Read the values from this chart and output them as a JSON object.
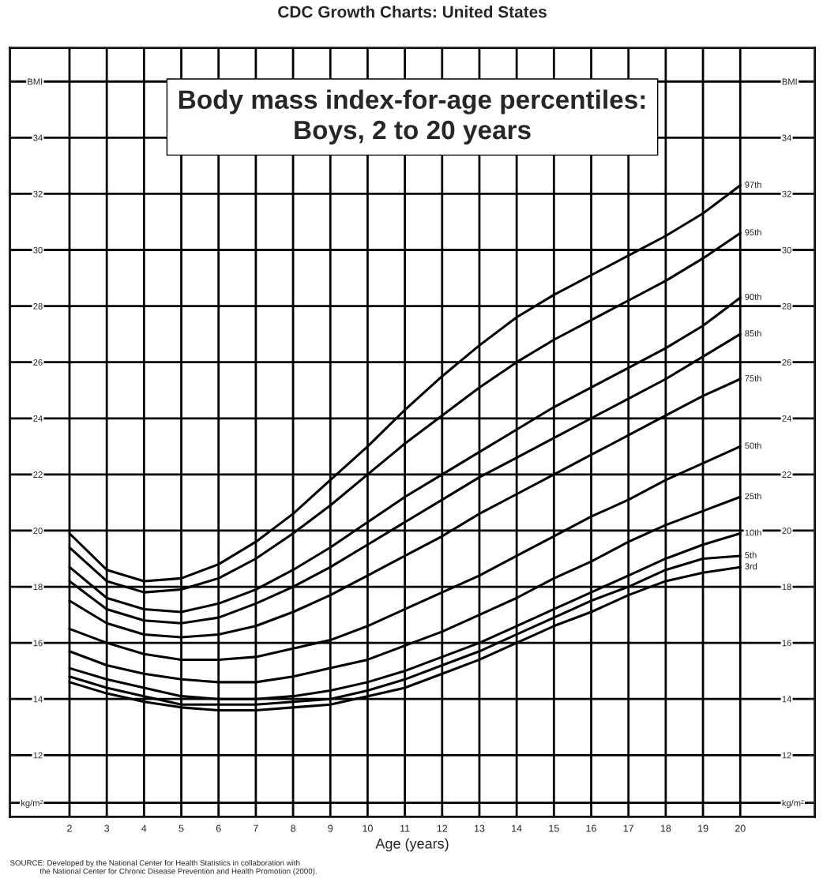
{
  "chart_data": {
    "type": "line",
    "title": "CDC Growth Charts: United States",
    "subtitle": "Body mass index-for-age percentiles:\nBoys, 2 to 20 years",
    "xlabel": "Age (years)",
    "annotations": [
      "SOURCE: Developed by the National Center for Health Statistics in collaboration with\n              the National Center for Chronic Disease Prevention and Health Promotion (2000)."
    ],
    "x": [
      2,
      3,
      4,
      5,
      6,
      7,
      8,
      9,
      10,
      11,
      12,
      13,
      14,
      15,
      16,
      17,
      18,
      19,
      20
    ],
    "series": [
      {
        "name": "97th",
        "color": "#000000",
        "values": [
          19.9,
          18.6,
          18.2,
          18.3,
          18.8,
          19.6,
          20.6,
          21.8,
          23.0,
          24.3,
          25.5,
          26.6,
          27.6,
          28.4,
          29.1,
          29.8,
          30.5,
          31.3,
          32.3
        ]
      },
      {
        "name": "95th",
        "color": "#000000",
        "values": [
          19.4,
          18.2,
          17.8,
          17.9,
          18.3,
          19.0,
          19.9,
          20.9,
          22.0,
          23.1,
          24.1,
          25.1,
          26.0,
          26.8,
          27.5,
          28.2,
          28.9,
          29.7,
          30.6
        ]
      },
      {
        "name": "90th",
        "color": "#000000",
        "values": [
          18.7,
          17.6,
          17.2,
          17.1,
          17.4,
          17.9,
          18.6,
          19.4,
          20.3,
          21.2,
          22.0,
          22.8,
          23.6,
          24.4,
          25.1,
          25.8,
          26.5,
          27.3,
          28.3
        ]
      },
      {
        "name": "85th",
        "color": "#000000",
        "values": [
          18.2,
          17.2,
          16.8,
          16.7,
          16.9,
          17.4,
          18.0,
          18.7,
          19.5,
          20.3,
          21.1,
          21.9,
          22.6,
          23.3,
          24.0,
          24.7,
          25.4,
          26.2,
          27.0
        ]
      },
      {
        "name": "75th",
        "color": "#000000",
        "values": [
          17.5,
          16.7,
          16.3,
          16.2,
          16.3,
          16.6,
          17.1,
          17.7,
          18.4,
          19.1,
          19.8,
          20.6,
          21.3,
          22.0,
          22.7,
          23.4,
          24.1,
          24.8,
          25.4
        ]
      },
      {
        "name": "50th",
        "color": "#000000",
        "values": [
          16.5,
          16.0,
          15.6,
          15.4,
          15.4,
          15.5,
          15.8,
          16.1,
          16.6,
          17.2,
          17.8,
          18.4,
          19.1,
          19.8,
          20.5,
          21.1,
          21.8,
          22.4,
          23.0
        ]
      },
      {
        "name": "25th",
        "color": "#000000",
        "values": [
          15.7,
          15.2,
          14.9,
          14.7,
          14.6,
          14.6,
          14.8,
          15.1,
          15.4,
          15.9,
          16.4,
          17.0,
          17.6,
          18.3,
          18.9,
          19.6,
          20.2,
          20.7,
          21.2
        ]
      },
      {
        "name": "10th",
        "color": "#000000",
        "values": [
          15.1,
          14.7,
          14.4,
          14.1,
          14.0,
          14.0,
          14.1,
          14.3,
          14.6,
          15.0,
          15.5,
          16.0,
          16.6,
          17.2,
          17.8,
          18.4,
          19.0,
          19.5,
          19.9
        ]
      },
      {
        "name": "5th",
        "color": "#000000",
        "values": [
          14.8,
          14.4,
          14.1,
          13.8,
          13.8,
          13.8,
          13.9,
          14.0,
          14.3,
          14.7,
          15.2,
          15.7,
          16.3,
          16.9,
          17.5,
          18.0,
          18.6,
          19.0,
          19.1
        ]
      },
      {
        "name": "3rd",
        "color": "#000000",
        "values": [
          14.6,
          14.2,
          13.9,
          13.7,
          13.6,
          13.6,
          13.7,
          13.8,
          14.1,
          14.4,
          14.9,
          15.4,
          16.0,
          16.6,
          17.1,
          17.7,
          18.2,
          18.5,
          18.7
        ]
      }
    ],
    "xlim": [
      0.4,
      22.0
    ],
    "xticks": [
      2,
      3,
      4,
      5,
      6,
      7,
      8,
      9,
      10,
      11,
      12,
      13,
      14,
      15,
      16,
      17,
      18,
      19,
      20
    ],
    "ylim": [
      9.8,
      37.2
    ],
    "yticks": [
      {
        "value": 10.3,
        "label": "kg/m²"
      },
      12,
      14,
      16,
      18,
      20,
      22,
      24,
      26,
      28,
      30,
      32,
      34,
      {
        "value": 36,
        "label": "BMI"
      }
    ],
    "y2lim": [
      9.8,
      37.2
    ],
    "y2ticks": [
      {
        "value": 10.3,
        "label": "kg/m²"
      },
      12,
      14,
      16,
      18,
      20,
      22,
      24,
      26,
      28,
      30,
      32,
      34,
      {
        "value": 36,
        "label": "BMI"
      }
    ],
    "grid": true,
    "legend": false,
    "marker": "none",
    "line_style": "solid"
  }
}
